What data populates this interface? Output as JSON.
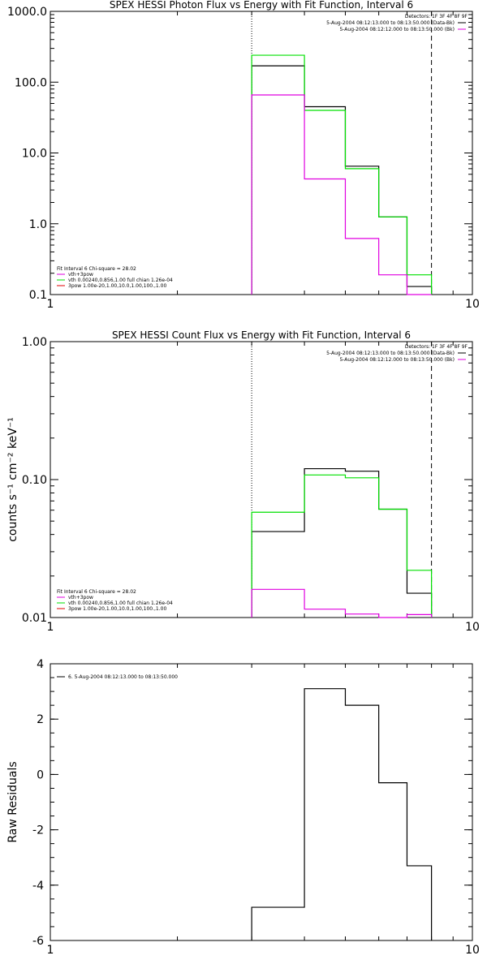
{
  "colors": {
    "data": "#000000",
    "model_total": "#e000e0",
    "model_vth": "#00e000",
    "model_3pow": "#e00000",
    "background_line": "#000000"
  },
  "chart_data": [
    {
      "type": "line",
      "title": "SPEX HESSI Photon Flux vs Energy with Fit Function, Interval 6",
      "xlabel": "",
      "ylabel": "",
      "xscale": "log",
      "yscale": "log",
      "xlim": [
        1,
        10
      ],
      "ylim": [
        0.1,
        1000
      ],
      "xticks": [
        "1",
        "10"
      ],
      "yticks": [
        "0.1",
        "1.0",
        "10.0",
        "100.0",
        "1000.0"
      ],
      "vlines": [
        {
          "x": 3,
          "style": "dotted"
        },
        {
          "x": 8,
          "style": "dashed"
        }
      ],
      "edges": [
        3,
        4,
        5,
        6,
        7,
        8
      ],
      "series": [
        {
          "name": "",
          "color": "#000000",
          "values": [
            170,
            45,
            6.5,
            1.25,
            0.13
          ]
        },
        {
          "name": "",
          "color": "#00e000",
          "values": [
            240,
            40,
            6.0,
            1.25,
            0.19
          ]
        },
        {
          "name": "",
          "color": "#e000e0",
          "values": [
            66,
            4.3,
            0.62,
            0.19,
            0.09
          ]
        }
      ],
      "detectors_text": "Detectors: 1F 3F 4F 8F 9F",
      "legend_right": [
        {
          "text": "5-Aug-2004 08:12:13.000 to 08:13:50.000 (Data-Bk)",
          "color": "#000000"
        },
        {
          "text": "5-Aug-2004 08:12:12.000 to 08:13:50.000 (Bk)",
          "color": "#e000e0"
        }
      ],
      "legend_left": [
        {
          "text": "Fit Interval 6   Chi-square = 28.02",
          "color": ""
        },
        {
          "text": "vth+3pow",
          "color": "#e000e0"
        },
        {
          "text": "vth 0.00240,0.856,1.00  full chian 1.26e-04",
          "color": "#00e000"
        },
        {
          "text": "3pow 1.00e-20,1.00,10.0,1.00,100.,1.00",
          "color": "#e00000"
        }
      ]
    },
    {
      "type": "line",
      "title": "SPEX HESSI Count Flux vs Energy with Fit Function, Interval 6",
      "xlabel": "",
      "ylabel": "counts s⁻¹ cm⁻² keV⁻¹",
      "xscale": "log",
      "yscale": "log",
      "xlim": [
        1,
        10
      ],
      "ylim": [
        0.01,
        1.0
      ],
      "xticks": [
        "1",
        "10"
      ],
      "yticks": [
        "0.01",
        "0.10",
        "1.00"
      ],
      "vlines": [
        {
          "x": 3,
          "style": "dotted"
        },
        {
          "x": 8,
          "style": "dashed"
        }
      ],
      "edges": [
        3,
        4,
        5,
        6,
        7,
        8
      ],
      "series": [
        {
          "name": "",
          "color": "#000000",
          "values": [
            0.042,
            0.12,
            0.115,
            0.061,
            0.015
          ]
        },
        {
          "name": "",
          "color": "#00e000",
          "values": [
            0.058,
            0.108,
            0.103,
            0.061,
            0.022
          ]
        },
        {
          "name": "",
          "color": "#e000e0",
          "values": [
            0.016,
            0.0115,
            0.0106,
            0.0098,
            0.0105
          ]
        }
      ],
      "detectors_text": "Detectors: 1F 3F 4F 8F 9F",
      "legend_right": [
        {
          "text": "5-Aug-2004 08:12:13.000 to 08:13:50.000 (Data-Bk)",
          "color": "#000000"
        },
        {
          "text": "5-Aug-2004 08:12:12.000 to 08:13:50.000 (Bk)",
          "color": "#e000e0"
        }
      ],
      "legend_left": [
        {
          "text": "Fit Interval 6   Chi-square = 28.02",
          "color": ""
        },
        {
          "text": "vth+3pow",
          "color": "#e000e0"
        },
        {
          "text": "vth 0.00240,0.856,1.00  full chian 1.26e-04",
          "color": "#00e000"
        },
        {
          "text": "3pow 1.00e-20,1.00,10.0,1.00,100.,1.00",
          "color": "#e00000"
        }
      ]
    },
    {
      "type": "line",
      "title": "",
      "xlabel": "",
      "ylabel": "Raw Residuals",
      "xscale": "log",
      "yscale": "linear",
      "xlim": [
        1,
        10
      ],
      "ylim": [
        -6,
        4
      ],
      "xticks": [
        "1",
        "10"
      ],
      "yticks": [
        "-6",
        "-4",
        "-2",
        "0",
        "2",
        "4"
      ],
      "vlines": [],
      "edges": [
        3,
        4,
        5,
        6,
        7,
        8
      ],
      "series": [
        {
          "name": "6. 5-Aug-2004 08:12:13.000 to 08:13:50.000",
          "color": "#000000",
          "values": [
            -4.8,
            3.1,
            2.5,
            -0.3,
            -3.3
          ]
        }
      ],
      "legend_left": [
        {
          "text": "6. 5-Aug-2004 08:12:13.000 to 08:13:50.000",
          "color": "#000000"
        }
      ]
    }
  ]
}
